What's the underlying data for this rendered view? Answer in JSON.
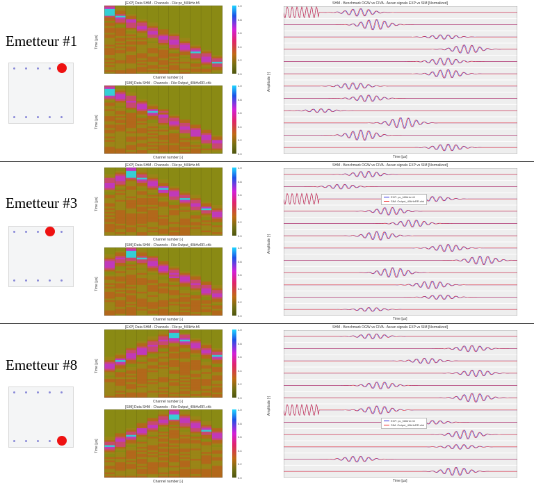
{
  "rows": [
    {
      "emitter_label": "Emetteur #1",
      "emitter_position": {
        "edge": "top",
        "index": 4
      },
      "exp_title": "[EXP] Data SHM - Channels - File:pc_f40kHz.h5",
      "sim_title": "[SIM] Data SHM - Channels - File:Output_40kHzRR.chk",
      "legend": null
    },
    {
      "emitter_label": "Emetteur #3",
      "emitter_position": {
        "edge": "top",
        "index": 3
      },
      "exp_title": "[EXP] Data SHM - Channels - File:pc_f40kHz.h5",
      "sim_title": "[SIM] Data SHM - Channels - File:Output_40kHzRR.chk",
      "legend": {
        "exp": "EXP: pc_f40kHz.h5",
        "sim": "SIM: Output_40kHzRR.chk"
      }
    },
    {
      "emitter_label": "Emetteur #8",
      "emitter_position": {
        "edge": "bottom",
        "index": 4
      },
      "exp_title": "[EXP] Data SHM - Channels - File:pc_f40kHz.h5",
      "sim_title": "[SIM] Data SHM - Channels - File:Output_40kHzRR.chk",
      "legend": {
        "exp": "EXP: pc_f40kHz.h5",
        "sim": "SIM: Output_40kHzRR.chk"
      }
    }
  ],
  "heatmap_axes": {
    "xlabel": "Channel number [-]",
    "ylabel": "Time [µs]",
    "colorbar_ticks": [
      "1.0",
      "0.8",
      "0.6",
      "0.4",
      "0.2",
      "0.0"
    ]
  },
  "ascan_axes": {
    "title": "SHM - Benchmark OGW vs CIVA - Ascan signals EXP vs SIM [Normalized]",
    "xlabel": "Time [µs]",
    "ylabel": "Amplitude [-]"
  },
  "colors": {
    "exp": "#2222dd",
    "sim": "#ee2222",
    "heatmap_bg": "#8a8a14",
    "emitter": "#ee1111",
    "receiver": "#8a8ad8"
  }
}
